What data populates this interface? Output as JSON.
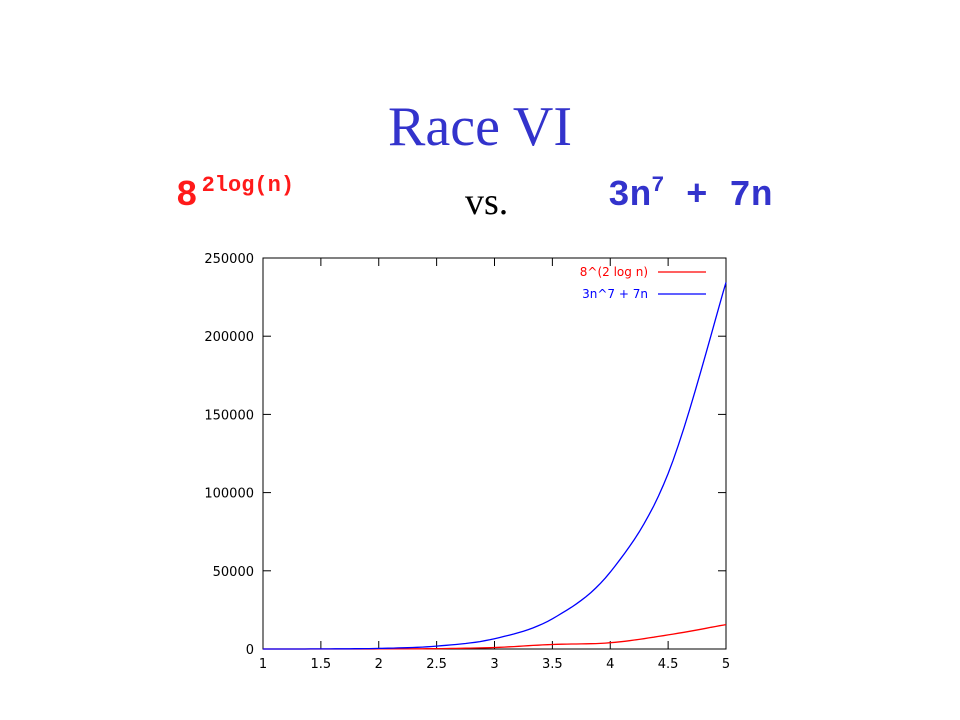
{
  "slide": {
    "title": "Race VI",
    "left_expr": {
      "base": "8",
      "exponent": "2log(n)",
      "color": "#ff1a1a"
    },
    "vs": "vs.",
    "right_expr": {
      "term1": "3n",
      "exponent": "7",
      "rest": " + 7n",
      "color": "#3333cc"
    }
  },
  "chart_data": {
    "type": "line",
    "xlim": [
      1,
      5
    ],
    "ylim": [
      0,
      250000
    ],
    "xticks": [
      "1",
      "1.5",
      "2",
      "2.5",
      "3",
      "3.5",
      "4",
      "4.5",
      "5"
    ],
    "yticks": [
      "0",
      "50000",
      "100000",
      "150000",
      "200000",
      "250000"
    ],
    "legend_position": "top-right",
    "grid": false,
    "series": [
      {
        "name": "8^(2 log n)",
        "color": "#ff0000",
        "x": [
          1,
          1.5,
          2,
          2.5,
          3,
          3.5,
          4,
          4.5,
          5
        ],
        "y": [
          0,
          0,
          40,
          244,
          960,
          2900,
          4000,
          9000,
          15625
        ]
      },
      {
        "name": "3n^7 + 7n",
        "color": "#0000ff",
        "x": [
          1,
          1.5,
          2,
          2.5,
          3,
          3.5,
          4,
          4.5,
          5
        ],
        "y": [
          10,
          61,
          398,
          1849,
          6582,
          19322,
          49180,
          112142,
          234410
        ]
      }
    ]
  }
}
